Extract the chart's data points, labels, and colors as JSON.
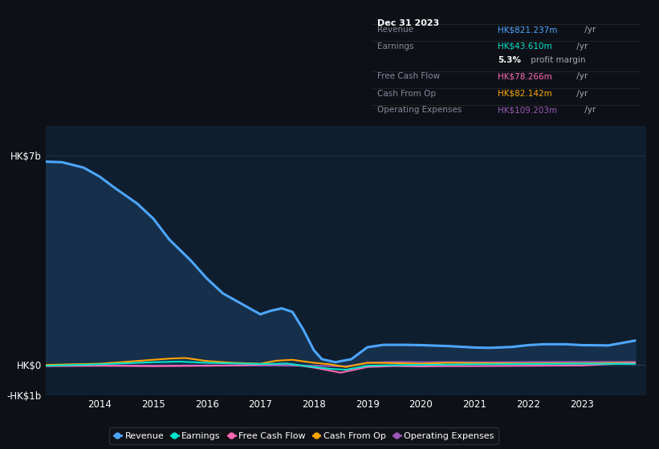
{
  "bg_color": "#0d1117",
  "plot_bg_color": "#0f1e2e",
  "grid_color": "#1e3050",
  "series": {
    "Revenue": {
      "color": "#4da6ff",
      "fill_color": "#1a3a5c",
      "fill_alpha": 0.65,
      "lw": 2.2,
      "x": [
        2013.0,
        2013.3,
        2013.7,
        2014.0,
        2014.3,
        2014.7,
        2015.0,
        2015.3,
        2015.7,
        2016.0,
        2016.3,
        2016.7,
        2017.0,
        2017.2,
        2017.4,
        2017.6,
        2017.8,
        2018.0,
        2018.15,
        2018.4,
        2018.7,
        2019.0,
        2019.3,
        2019.7,
        2020.0,
        2020.5,
        2021.0,
        2021.3,
        2021.7,
        2022.0,
        2022.3,
        2022.7,
        2023.0,
        2023.5,
        2024.0
      ],
      "y": [
        6800,
        6780,
        6600,
        6300,
        5900,
        5400,
        4900,
        4200,
        3500,
        2900,
        2400,
        2000,
        1700,
        1820,
        1900,
        1780,
        1200,
        500,
        200,
        100,
        200,
        600,
        680,
        680,
        670,
        640,
        590,
        580,
        610,
        670,
        700,
        700,
        670,
        660,
        821
      ]
    },
    "Earnings": {
      "color": "#00e5cc",
      "lw": 1.5,
      "x": [
        2013.0,
        2014.0,
        2015.0,
        2015.5,
        2016.0,
        2016.5,
        2017.0,
        2017.5,
        2018.0,
        2018.3,
        2018.6,
        2019.0,
        2019.5,
        2020.0,
        2020.5,
        2021.0,
        2021.5,
        2022.0,
        2022.5,
        2023.0,
        2024.0
      ],
      "y": [
        -20,
        30,
        100,
        120,
        80,
        60,
        40,
        50,
        -60,
        -120,
        -150,
        -20,
        0,
        10,
        20,
        30,
        35,
        40,
        45,
        50,
        44
      ]
    },
    "Free Cash Flow": {
      "color": "#ff69b4",
      "lw": 1.5,
      "x": [
        2013.0,
        2014.0,
        2015.0,
        2016.0,
        2016.5,
        2017.0,
        2017.5,
        2018.0,
        2018.3,
        2018.5,
        2019.0,
        2019.5,
        2020.0,
        2020.5,
        2021.0,
        2021.5,
        2022.0,
        2022.5,
        2023.0,
        2024.0
      ],
      "y": [
        -30,
        -20,
        -30,
        -20,
        -10,
        20,
        50,
        -80,
        -180,
        -250,
        -60,
        -30,
        -40,
        -30,
        -30,
        -25,
        -20,
        -15,
        -10,
        78
      ]
    },
    "Cash From Op": {
      "color": "#ffa500",
      "lw": 1.5,
      "x": [
        2013.0,
        2014.0,
        2015.0,
        2015.3,
        2015.6,
        2016.0,
        2016.5,
        2017.0,
        2017.3,
        2017.6,
        2018.0,
        2018.3,
        2018.6,
        2019.0,
        2019.5,
        2020.0,
        2020.5,
        2021.0,
        2021.5,
        2022.0,
        2022.5,
        2023.0,
        2024.0
      ],
      "y": [
        10,
        50,
        180,
        220,
        240,
        140,
        80,
        50,
        150,
        180,
        80,
        30,
        -60,
        80,
        70,
        50,
        80,
        70,
        65,
        60,
        65,
        60,
        82
      ]
    },
    "Operating Expenses": {
      "color": "#9b59b6",
      "lw": 1.5,
      "x": [
        2013.0,
        2014.0,
        2015.0,
        2016.0,
        2017.0,
        2018.0,
        2018.3,
        2018.6,
        2019.0,
        2019.3,
        2019.7,
        2020.0,
        2020.5,
        2021.0,
        2021.5,
        2022.0,
        2022.5,
        2023.0,
        2024.0
      ],
      "y": [
        -20,
        -10,
        -20,
        -10,
        -10,
        -20,
        -30,
        -40,
        80,
        100,
        110,
        100,
        105,
        100,
        100,
        105,
        108,
        108,
        109
      ]
    }
  },
  "ylim": [
    -1000,
    8000
  ],
  "yticks": [
    -1000,
    0,
    7000
  ],
  "ytick_labels": [
    "-HK$1b",
    "HK$0",
    "HK$7b"
  ],
  "xlim": [
    2013.0,
    2024.2
  ],
  "xticks": [
    2014,
    2015,
    2016,
    2017,
    2018,
    2019,
    2020,
    2021,
    2022,
    2023
  ],
  "legend": [
    {
      "label": "Revenue",
      "color": "#4da6ff"
    },
    {
      "label": "Earnings",
      "color": "#00e5cc"
    },
    {
      "label": "Free Cash Flow",
      "color": "#ff69b4"
    },
    {
      "label": "Cash From Op",
      "color": "#ffa500"
    },
    {
      "label": "Operating Expenses",
      "color": "#9b59b6"
    }
  ],
  "infobox": {
    "bg": "#080c10",
    "border": "#2a2a2a",
    "date": "Dec 31 2023",
    "date_color": "#ffffff",
    "label_color": "#888899",
    "rows": [
      {
        "label": "Revenue",
        "value": "HK$821.237m",
        "suffix": " /yr",
        "vcolor": "#4da6ff"
      },
      {
        "label": "Earnings",
        "value": "HK$43.610m",
        "suffix": " /yr",
        "vcolor": "#00e5cc"
      },
      {
        "label": "",
        "value": "5.3%",
        "suffix": " profit margin",
        "vcolor": "#ffffff",
        "bold": true
      },
      {
        "label": "Free Cash Flow",
        "value": "HK$78.266m",
        "suffix": " /yr",
        "vcolor": "#ff69b4"
      },
      {
        "label": "Cash From Op",
        "value": "HK$82.142m",
        "suffix": " /yr",
        "vcolor": "#ffa500"
      },
      {
        "label": "Operating Expenses",
        "value": "HK$109.203m",
        "suffix": " /yr",
        "vcolor": "#9b59b6"
      }
    ]
  }
}
